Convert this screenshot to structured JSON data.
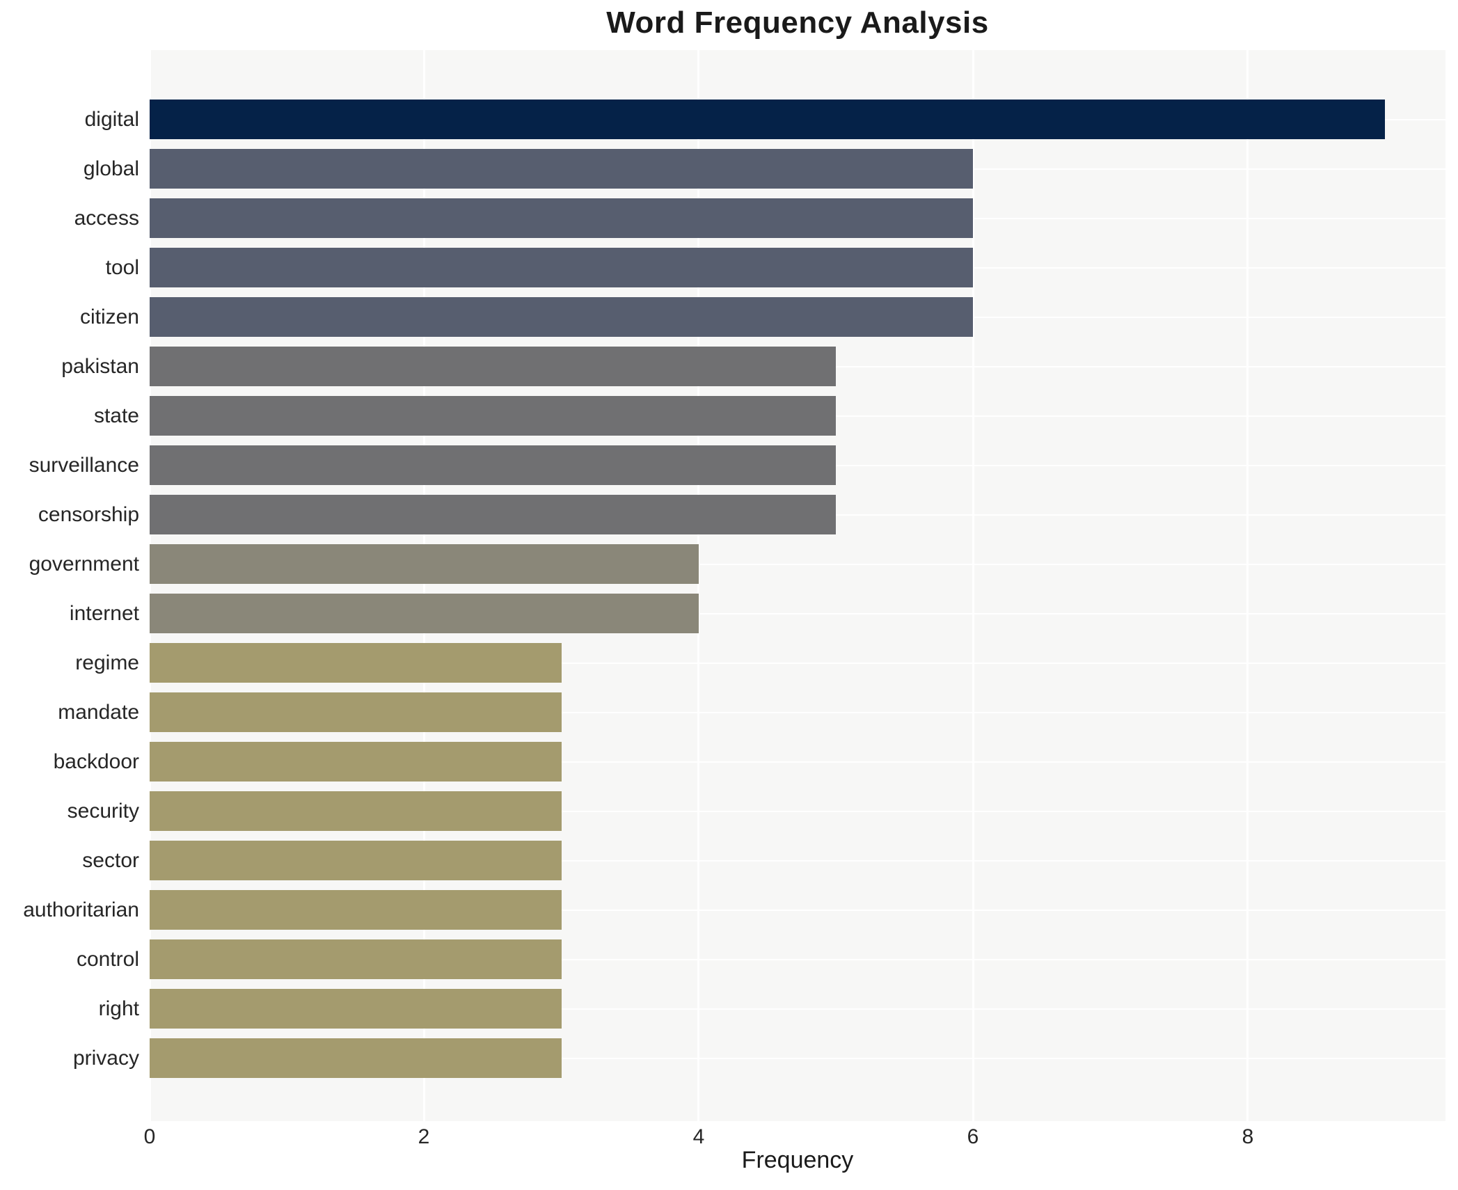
{
  "chart_data": {
    "type": "bar",
    "orientation": "horizontal",
    "title": "Word Frequency Analysis",
    "xlabel": "Frequency",
    "ylabel": "",
    "categories": [
      "digital",
      "global",
      "access",
      "tool",
      "citizen",
      "pakistan",
      "state",
      "surveillance",
      "censorship",
      "government",
      "internet",
      "regime",
      "mandate",
      "backdoor",
      "security",
      "sector",
      "authoritarian",
      "control",
      "right",
      "privacy"
    ],
    "values": [
      9,
      6,
      6,
      6,
      6,
      5,
      5,
      5,
      5,
      4,
      4,
      3,
      3,
      3,
      3,
      3,
      3,
      3,
      3,
      3
    ],
    "bar_colors": [
      "#052248",
      "#575e6f",
      "#575e6f",
      "#575e6f",
      "#575e6f",
      "#707072",
      "#707072",
      "#707072",
      "#707072",
      "#8a8779",
      "#8a8779",
      "#a49b6e",
      "#a49b6e",
      "#a49b6e",
      "#a49b6e",
      "#a49b6e",
      "#a49b6e",
      "#a49b6e",
      "#a49b6e",
      "#a49b6e"
    ],
    "x_ticks": [
      0,
      2,
      4,
      6,
      8
    ],
    "xlim": [
      0,
      9.44
    ],
    "grid": true,
    "legend": false,
    "plot_background": "#f7f7f6",
    "grid_color": "#ffffff"
  }
}
